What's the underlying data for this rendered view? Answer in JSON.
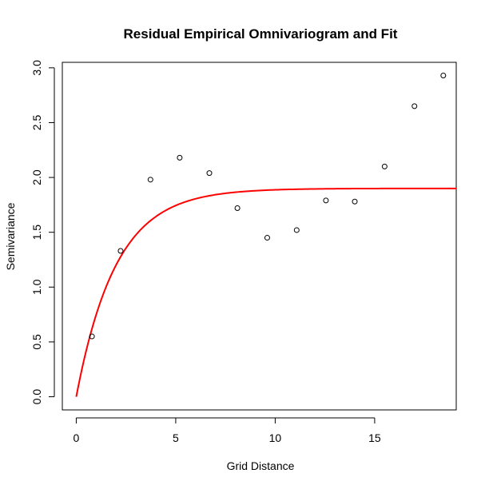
{
  "chart_data": {
    "type": "scatter",
    "title": "Residual Empirical Omnivariogram and Fit",
    "xlabel": "Grid Distance",
    "ylabel": "Semivariance",
    "xlim": [
      -0.7,
      19.1
    ],
    "ylim": [
      -0.12,
      3.05
    ],
    "xticks": [
      0,
      5,
      10,
      15
    ],
    "xtick_labels": [
      "0",
      "5",
      "10",
      "15"
    ],
    "yticks": [
      0.0,
      0.5,
      1.0,
      1.5,
      2.0,
      2.5,
      3.0
    ],
    "ytick_labels": [
      "0.0",
      "0.5",
      "1.0",
      "1.5",
      "2.0",
      "2.5",
      "3.0"
    ],
    "grid": false,
    "series": [
      {
        "type": "scatter",
        "marker": "open-circle",
        "color": "#000000",
        "points": [
          {
            "x": 0.79,
            "y": 0.55
          },
          {
            "x": 2.23,
            "y": 1.33
          },
          {
            "x": 3.73,
            "y": 1.98
          },
          {
            "x": 5.2,
            "y": 2.18
          },
          {
            "x": 6.69,
            "y": 2.04
          },
          {
            "x": 8.1,
            "y": 1.72
          },
          {
            "x": 9.6,
            "y": 1.45
          },
          {
            "x": 11.08,
            "y": 1.52
          },
          {
            "x": 12.55,
            "y": 1.79
          },
          {
            "x": 14.0,
            "y": 1.78
          },
          {
            "x": 15.5,
            "y": 2.1
          },
          {
            "x": 17.0,
            "y": 2.65
          },
          {
            "x": 18.45,
            "y": 2.93
          }
        ]
      },
      {
        "type": "line",
        "color": "#ff0000",
        "model": "exponential",
        "nugget": 0.0,
        "sill": 1.9,
        "range": 2.0,
        "x_start": 0,
        "x_end": 19.1
      }
    ]
  }
}
